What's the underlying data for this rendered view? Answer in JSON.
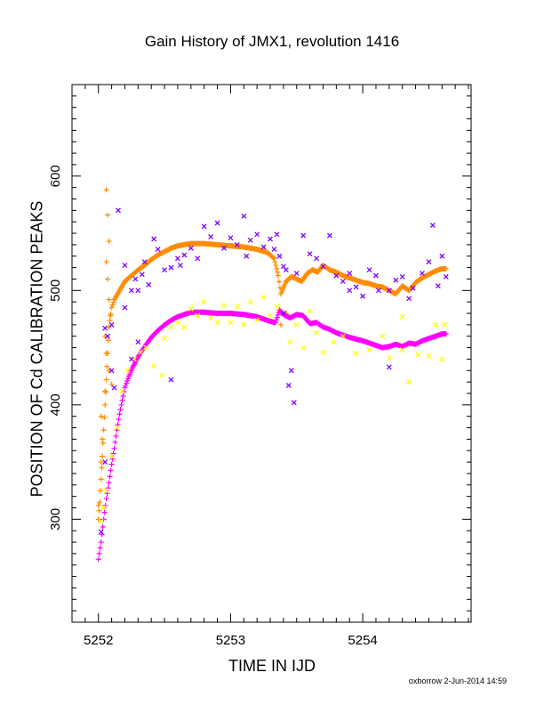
{
  "chart_data": {
    "type": "scatter",
    "title": "Gain History of JMX1, revolution 1416",
    "xlabel": "TIME IN IJD",
    "ylabel": "POSITION OF Cd CALIBRATION PEAKS",
    "xlim": [
      5251.8,
      5254.82
    ],
    "ylim": [
      210,
      680
    ],
    "x_ticks": [
      5252,
      5253,
      5254
    ],
    "x_tick_labels": [
      "5252",
      "5253",
      "5254"
    ],
    "y_ticks": [
      300,
      400,
      500,
      600
    ],
    "y_tick_labels": [
      "300",
      "400",
      "500",
      "600"
    ],
    "grid": false,
    "legend": "none",
    "series": [
      {
        "color": "#ff8c00",
        "marker": "plus",
        "points": [
          [
            5252.0,
            300
          ],
          [
            5252.01,
            315
          ],
          [
            5252.02,
            335
          ],
          [
            5252.03,
            355
          ],
          [
            5252.04,
            378
          ],
          [
            5252.05,
            400
          ],
          [
            5252.06,
            422
          ],
          [
            5252.07,
            445
          ],
          [
            5252.08,
            468
          ],
          [
            5252.1,
            485
          ],
          [
            5252.12,
            492
          ],
          [
            5252.16,
            500
          ],
          [
            5252.2,
            508
          ],
          [
            5252.25,
            513
          ],
          [
            5252.3,
            518
          ],
          [
            5252.35,
            522
          ],
          [
            5252.4,
            527
          ],
          [
            5252.45,
            531
          ],
          [
            5252.5,
            534
          ],
          [
            5252.55,
            537
          ],
          [
            5252.6,
            539
          ],
          [
            5252.65,
            540
          ],
          [
            5252.7,
            541
          ],
          [
            5252.75,
            541
          ],
          [
            5252.8,
            541
          ],
          [
            5252.9,
            540
          ],
          [
            5253.0,
            539
          ],
          [
            5253.1,
            538
          ],
          [
            5253.2,
            536
          ],
          [
            5253.28,
            533
          ],
          [
            5253.33,
            528
          ],
          [
            5253.36,
            513
          ],
          [
            5253.38,
            497
          ],
          [
            5253.42,
            508
          ],
          [
            5253.46,
            512
          ],
          [
            5253.5,
            510
          ],
          [
            5253.54,
            508
          ],
          [
            5253.58,
            515
          ],
          [
            5253.62,
            518
          ],
          [
            5253.66,
            516
          ],
          [
            5253.7,
            522
          ],
          [
            5253.75,
            518
          ],
          [
            5253.8,
            516
          ],
          [
            5253.85,
            513
          ],
          [
            5253.9,
            511
          ],
          [
            5253.95,
            509
          ],
          [
            5254.0,
            507
          ],
          [
            5254.05,
            506
          ],
          [
            5254.1,
            504
          ],
          [
            5254.15,
            503
          ],
          [
            5254.2,
            500
          ],
          [
            5254.25,
            497
          ],
          [
            5254.3,
            504
          ],
          [
            5254.35,
            500
          ],
          [
            5254.4,
            507
          ],
          [
            5254.45,
            511
          ],
          [
            5254.5,
            514
          ],
          [
            5254.55,
            517
          ],
          [
            5254.6,
            519
          ],
          [
            5254.63,
            519
          ]
        ]
      },
      {
        "color": "#ff8c00",
        "marker": "plus-sparse",
        "points": [
          [
            5252.06,
            588
          ],
          [
            5252.07,
            566
          ],
          [
            5252.08,
            543
          ],
          [
            5252.06,
            525
          ],
          [
            5252.07,
            510
          ],
          [
            5252.08,
            492
          ],
          [
            5252.09,
            478
          ],
          [
            5252.05,
            460
          ],
          [
            5252.06,
            445
          ],
          [
            5252.08,
            430
          ],
          [
            5252.05,
            412
          ],
          [
            5252.1,
            418
          ],
          [
            5252.02,
            390
          ],
          [
            5252.03,
            370
          ],
          [
            5252.0,
            312
          ],
          [
            5252.02,
            350
          ],
          [
            5253.38,
            470
          ],
          [
            5253.42,
            480
          ]
        ]
      },
      {
        "color": "#ff00ff",
        "marker": "plus",
        "points": [
          [
            5252.0,
            265
          ],
          [
            5252.02,
            280
          ],
          [
            5252.04,
            300
          ],
          [
            5252.06,
            318
          ],
          [
            5252.08,
            332
          ],
          [
            5252.1,
            348
          ],
          [
            5252.12,
            362
          ],
          [
            5252.14,
            378
          ],
          [
            5252.16,
            392
          ],
          [
            5252.18,
            404
          ],
          [
            5252.2,
            415
          ],
          [
            5252.23,
            425
          ],
          [
            5252.26,
            433
          ],
          [
            5252.3,
            442
          ],
          [
            5252.35,
            451
          ],
          [
            5252.4,
            459
          ],
          [
            5252.45,
            465
          ],
          [
            5252.5,
            470
          ],
          [
            5252.55,
            474
          ],
          [
            5252.6,
            477
          ],
          [
            5252.65,
            479
          ],
          [
            5252.7,
            481
          ],
          [
            5252.8,
            481
          ],
          [
            5252.9,
            480
          ],
          [
            5253.0,
            480
          ],
          [
            5253.1,
            479
          ],
          [
            5253.2,
            477
          ],
          [
            5253.3,
            473
          ],
          [
            5253.34,
            472
          ],
          [
            5253.37,
            483
          ],
          [
            5253.4,
            479
          ],
          [
            5253.45,
            476
          ],
          [
            5253.5,
            479
          ],
          [
            5253.55,
            478
          ],
          [
            5253.6,
            471
          ],
          [
            5253.65,
            472
          ],
          [
            5253.7,
            468
          ],
          [
            5253.75,
            466
          ],
          [
            5253.8,
            463
          ],
          [
            5253.9,
            459
          ],
          [
            5254.0,
            456
          ],
          [
            5254.1,
            452
          ],
          [
            5254.15,
            450
          ],
          [
            5254.2,
            451
          ],
          [
            5254.25,
            453
          ],
          [
            5254.3,
            451
          ],
          [
            5254.35,
            454
          ],
          [
            5254.4,
            453
          ],
          [
            5254.45,
            456
          ],
          [
            5254.5,
            458
          ],
          [
            5254.55,
            460
          ],
          [
            5254.6,
            462
          ],
          [
            5254.63,
            462
          ]
        ]
      },
      {
        "color": "#ffff00",
        "marker": "x",
        "points": [
          [
            5252.02,
            298
          ],
          [
            5252.04,
            310
          ],
          [
            5252.06,
            325
          ],
          [
            5252.1,
            355
          ],
          [
            5252.14,
            380
          ],
          [
            5252.18,
            412
          ],
          [
            5252.22,
            430
          ],
          [
            5252.27,
            440
          ],
          [
            5252.32,
            446
          ],
          [
            5252.36,
            450
          ],
          [
            5252.42,
            434
          ],
          [
            5252.48,
            426
          ],
          [
            5252.5,
            458
          ],
          [
            5252.55,
            468
          ],
          [
            5252.6,
            472
          ],
          [
            5252.65,
            468
          ],
          [
            5252.7,
            484
          ],
          [
            5252.75,
            478
          ],
          [
            5252.8,
            490
          ],
          [
            5252.85,
            476
          ],
          [
            5252.9,
            472
          ],
          [
            5252.95,
            487
          ],
          [
            5253.0,
            472
          ],
          [
            5253.05,
            486
          ],
          [
            5253.1,
            470
          ],
          [
            5253.15,
            490
          ],
          [
            5253.2,
            474
          ],
          [
            5253.25,
            494
          ],
          [
            5253.3,
            478
          ],
          [
            5253.35,
            486
          ],
          [
            5253.45,
            455
          ],
          [
            5253.5,
            470
          ],
          [
            5253.55,
            450
          ],
          [
            5253.6,
            482
          ],
          [
            5253.65,
            463
          ],
          [
            5253.7,
            446
          ],
          [
            5253.78,
            455
          ],
          [
            5253.85,
            460
          ],
          [
            5253.95,
            445
          ],
          [
            5254.05,
            448
          ],
          [
            5254.15,
            460
          ],
          [
            5254.2,
            441
          ],
          [
            5254.3,
            448
          ],
          [
            5254.35,
            420
          ],
          [
            5254.42,
            444
          ],
          [
            5254.5,
            443
          ],
          [
            5254.55,
            470
          ],
          [
            5254.6,
            440
          ],
          [
            5254.62,
            470
          ],
          [
            5254.3,
            477
          ]
        ]
      },
      {
        "color": "#7f00ff",
        "marker": "x",
        "points": [
          [
            5252.02,
            289
          ],
          [
            5252.05,
            350
          ],
          [
            5252.05,
            467
          ],
          [
            5252.07,
            460
          ],
          [
            5252.1,
            430
          ],
          [
            5252.12,
            415
          ],
          [
            5252.15,
            570
          ],
          [
            5252.2,
            522
          ],
          [
            5252.2,
            485
          ],
          [
            5252.25,
            500
          ],
          [
            5252.28,
            510
          ],
          [
            5252.3,
            500
          ],
          [
            5252.33,
            514
          ],
          [
            5252.35,
            525
          ],
          [
            5252.38,
            505
          ],
          [
            5252.42,
            545
          ],
          [
            5252.45,
            536
          ],
          [
            5252.5,
            518
          ],
          [
            5252.55,
            422
          ],
          [
            5252.6,
            528
          ],
          [
            5252.62,
            522
          ],
          [
            5252.65,
            531
          ],
          [
            5252.7,
            537
          ],
          [
            5252.75,
            528
          ],
          [
            5252.8,
            556
          ],
          [
            5252.85,
            547
          ],
          [
            5252.9,
            559
          ],
          [
            5252.95,
            537
          ],
          [
            5253.0,
            546
          ],
          [
            5253.05,
            540
          ],
          [
            5253.1,
            565
          ],
          [
            5253.12,
            530
          ],
          [
            5253.15,
            544
          ],
          [
            5253.2,
            549
          ],
          [
            5253.25,
            538
          ],
          [
            5253.3,
            545
          ],
          [
            5253.33,
            536
          ],
          [
            5253.35,
            549
          ],
          [
            5253.37,
            530
          ],
          [
            5253.4,
            521
          ],
          [
            5253.42,
            518
          ],
          [
            5253.44,
            417
          ],
          [
            5253.46,
            430
          ],
          [
            5253.48,
            402
          ],
          [
            5253.5,
            515
          ],
          [
            5253.55,
            548
          ],
          [
            5253.6,
            532
          ],
          [
            5253.65,
            528
          ],
          [
            5253.7,
            521
          ],
          [
            5253.75,
            548
          ],
          [
            5253.8,
            513
          ],
          [
            5253.85,
            508
          ],
          [
            5253.9,
            515
          ],
          [
            5253.95,
            503
          ],
          [
            5254.0,
            495
          ],
          [
            5254.05,
            518
          ],
          [
            5254.1,
            513
          ],
          [
            5254.12,
            500
          ],
          [
            5254.2,
            500
          ],
          [
            5254.25,
            509
          ],
          [
            5254.3,
            512
          ],
          [
            5254.35,
            493
          ],
          [
            5254.38,
            502
          ],
          [
            5254.45,
            515
          ],
          [
            5254.5,
            525
          ],
          [
            5254.53,
            557
          ],
          [
            5254.57,
            504
          ],
          [
            5254.6,
            530
          ],
          [
            5254.63,
            512
          ],
          [
            5252.1,
            470
          ],
          [
            5252.25,
            440
          ],
          [
            5252.3,
            455
          ],
          [
            5252.55,
            520
          ],
          [
            5253.4,
            480
          ],
          [
            5253.9,
            500
          ],
          [
            5254.2,
            433
          ]
        ]
      }
    ]
  },
  "footer": "oxborrow  2-Jun-2014 14:59"
}
